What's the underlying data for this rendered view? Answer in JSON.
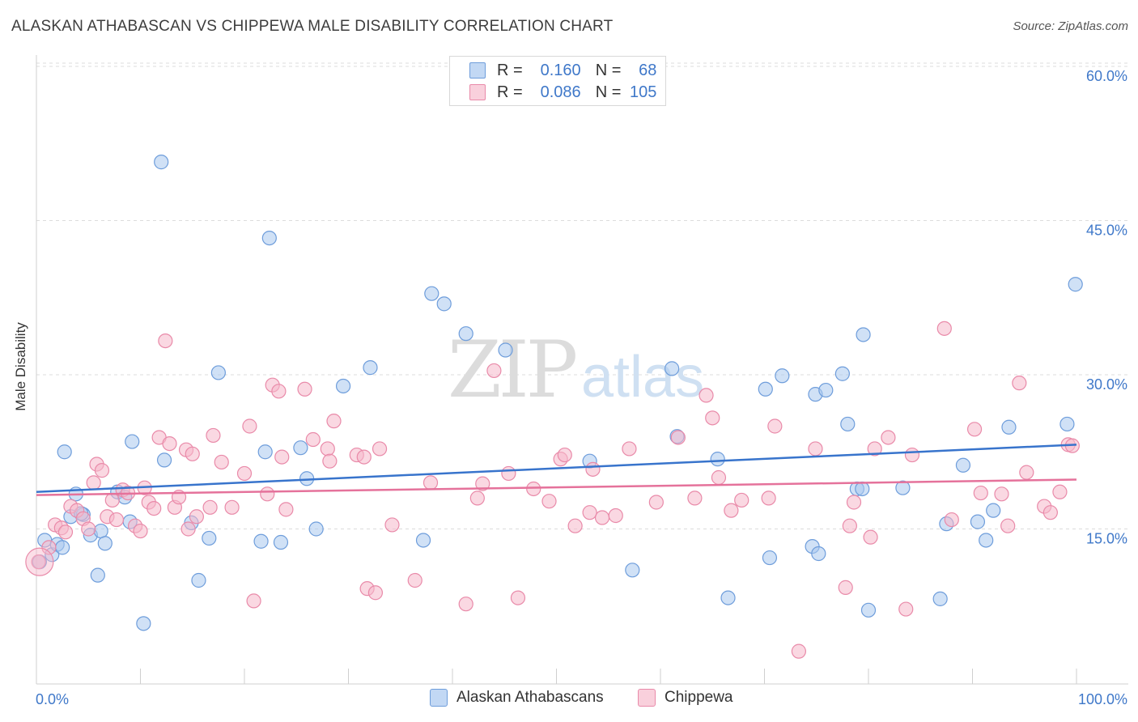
{
  "title": "ALASKAN ATHABASCAN VS CHIPPEWA MALE DISABILITY CORRELATION CHART",
  "source": "Source: ZipAtlas.com",
  "watermark": {
    "zip": "ZIP",
    "atlas": "atlas"
  },
  "legend_top": {
    "rows": [
      {
        "r_label": "R =",
        "r_value": "0.160",
        "n_label": "N =",
        "n_value": "68"
      },
      {
        "r_label": "R =",
        "r_value": "0.086",
        "n_label": "N =",
        "n_value": "105"
      }
    ]
  },
  "colors": {
    "blue_fill": "#aac8ee",
    "blue_stroke": "#6e9ddb",
    "blue_line": "#3874cc",
    "pink_fill": "#f6b8cb",
    "pink_stroke": "#e98aa9",
    "pink_line": "#e5729b",
    "tick_label": "#3f78c9",
    "grid": "#dcdcdc"
  },
  "chart_data": {
    "type": "scatter",
    "title": "ALASKAN ATHABASCAN VS CHIPPEWA MALE DISABILITY CORRELATION CHART",
    "xlabel": "",
    "ylabel": "Male Disability",
    "xlim": [
      0,
      100
    ],
    "ylim": [
      0,
      60
    ],
    "x_tick_labels": [
      "0.0%",
      "100.0%"
    ],
    "y_ticks": [
      15,
      30,
      45,
      60
    ],
    "y_tick_labels": [
      "15.0%",
      "30.0%",
      "45.0%",
      "60.0%"
    ],
    "grid": true,
    "legend_position": "bottom-center",
    "series": [
      {
        "name": "Alaskan Athabascans",
        "color": "#aac8ee",
        "trend": {
          "x": [
            0,
            100
          ],
          "y": [
            18.6,
            23.2
          ]
        },
        "points": [
          [
            0.3,
            11.8
          ],
          [
            0.8,
            13.9
          ],
          [
            1.5,
            12.5
          ],
          [
            2,
            13.5
          ],
          [
            2.7,
            22.5
          ],
          [
            3.3,
            16.2
          ],
          [
            3.8,
            18.4
          ],
          [
            4.5,
            16.4
          ],
          [
            5.2,
            14.4
          ],
          [
            5.9,
            10.5
          ],
          [
            6.2,
            14.8
          ],
          [
            6.6,
            13.6
          ],
          [
            7.8,
            18.6
          ],
          [
            8.5,
            18.1
          ],
          [
            9,
            15.7
          ],
          [
            9.2,
            23.5
          ],
          [
            10.3,
            5.8
          ],
          [
            12,
            50.7
          ],
          [
            12.3,
            21.7
          ],
          [
            14.9,
            15.6
          ],
          [
            15.6,
            10
          ],
          [
            16.6,
            14.1
          ],
          [
            17.5,
            30.2
          ],
          [
            21.6,
            13.8
          ],
          [
            22,
            22.5
          ],
          [
            22.4,
            43.3
          ],
          [
            23.5,
            13.7
          ],
          [
            25.4,
            22.9
          ],
          [
            26,
            19.9
          ],
          [
            26.9,
            15
          ],
          [
            29.5,
            28.9
          ],
          [
            32.1,
            30.7
          ],
          [
            37.2,
            13.9
          ],
          [
            38,
            37.9
          ],
          [
            39.2,
            36.9
          ],
          [
            41.3,
            34
          ],
          [
            45.1,
            32.4
          ],
          [
            53.2,
            21.6
          ],
          [
            57.3,
            11
          ],
          [
            61.1,
            30.6
          ],
          [
            61.6,
            24
          ],
          [
            65.5,
            21.8
          ],
          [
            66.5,
            8.3
          ],
          [
            70.1,
            28.6
          ],
          [
            70.5,
            12.2
          ],
          [
            71.7,
            29.9
          ],
          [
            74.6,
            13.3
          ],
          [
            74.9,
            28.1
          ],
          [
            75.2,
            12.6
          ],
          [
            75.9,
            28.5
          ],
          [
            77.5,
            30.1
          ],
          [
            78,
            25.2
          ],
          [
            78.9,
            18.9
          ],
          [
            79.4,
            18.9
          ],
          [
            79.5,
            33.9
          ],
          [
            80,
            7.1
          ],
          [
            83.3,
            19
          ],
          [
            86.9,
            8.2
          ],
          [
            87.5,
            15.5
          ],
          [
            89.1,
            21.2
          ],
          [
            90.5,
            15.7
          ],
          [
            91.3,
            13.9
          ],
          [
            92,
            16.8
          ],
          [
            93.5,
            24.9
          ],
          [
            99.1,
            25.2
          ],
          [
            99.9,
            38.8
          ],
          [
            2.5,
            13.2
          ],
          [
            4.3,
            16.5
          ]
        ]
      },
      {
        "name": "Chippewa",
        "color": "#f6b8cb",
        "trend": {
          "x": [
            0,
            100
          ],
          "y": [
            18.3,
            19.8
          ]
        },
        "points": [
          [
            0.2,
            11.8
          ],
          [
            1.2,
            13.2
          ],
          [
            1.8,
            15.4
          ],
          [
            2.4,
            15.1
          ],
          [
            2.8,
            14.7
          ],
          [
            3.3,
            17.2
          ],
          [
            3.9,
            16.8
          ],
          [
            4.5,
            16
          ],
          [
            5,
            15
          ],
          [
            5.5,
            19.5
          ],
          [
            5.8,
            21.3
          ],
          [
            6.3,
            20.7
          ],
          [
            6.8,
            16.2
          ],
          [
            7.3,
            17.8
          ],
          [
            7.7,
            15.9
          ],
          [
            8.3,
            18.8
          ],
          [
            8.8,
            18.5
          ],
          [
            9.5,
            15.3
          ],
          [
            10,
            14.8
          ],
          [
            10.4,
            19
          ],
          [
            10.8,
            17.6
          ],
          [
            11.3,
            17
          ],
          [
            11.8,
            23.9
          ],
          [
            12.4,
            33.3
          ],
          [
            12.8,
            23.3
          ],
          [
            13.3,
            17.1
          ],
          [
            13.7,
            18.1
          ],
          [
            14.4,
            22.7
          ],
          [
            14.6,
            15
          ],
          [
            15,
            22.3
          ],
          [
            15.4,
            16.2
          ],
          [
            16.7,
            17.1
          ],
          [
            17,
            24.1
          ],
          [
            17.8,
            21.5
          ],
          [
            18.8,
            17.1
          ],
          [
            20,
            20.4
          ],
          [
            20.5,
            25
          ],
          [
            20.9,
            8
          ],
          [
            22.2,
            18.4
          ],
          [
            22.7,
            29
          ],
          [
            23.3,
            28.4
          ],
          [
            23.6,
            22
          ],
          [
            24,
            16.9
          ],
          [
            25.8,
            28.6
          ],
          [
            26.6,
            23.7
          ],
          [
            28,
            22.8
          ],
          [
            28.2,
            21.6
          ],
          [
            28.6,
            25.5
          ],
          [
            30.8,
            22.2
          ],
          [
            31.5,
            22
          ],
          [
            31.8,
            9.2
          ],
          [
            32.6,
            8.8
          ],
          [
            33,
            22.8
          ],
          [
            34.2,
            15.4
          ],
          [
            36.4,
            10
          ],
          [
            37.9,
            19.5
          ],
          [
            41.3,
            7.7
          ],
          [
            42.4,
            18
          ],
          [
            42.9,
            19.4
          ],
          [
            44,
            30.4
          ],
          [
            45.4,
            20.4
          ],
          [
            46.3,
            8.3
          ],
          [
            47.8,
            18.9
          ],
          [
            49.3,
            17.7
          ],
          [
            50.4,
            21.8
          ],
          [
            50.8,
            22.2
          ],
          [
            51.8,
            15.3
          ],
          [
            53.2,
            16.6
          ],
          [
            53.5,
            20.8
          ],
          [
            54.4,
            16.1
          ],
          [
            55.7,
            16.3
          ],
          [
            57,
            22.8
          ],
          [
            59.6,
            17.6
          ],
          [
            61.7,
            23.9
          ],
          [
            63.3,
            18
          ],
          [
            64.4,
            28
          ],
          [
            65,
            25.8
          ],
          [
            65.6,
            20
          ],
          [
            66.8,
            16.8
          ],
          [
            67.8,
            17.8
          ],
          [
            70.4,
            18
          ],
          [
            71,
            25
          ],
          [
            73.3,
            3.1
          ],
          [
            74.9,
            22.8
          ],
          [
            77.8,
            9.3
          ],
          [
            78.2,
            15.3
          ],
          [
            78.6,
            17.6
          ],
          [
            80.2,
            14.2
          ],
          [
            80.6,
            22.8
          ],
          [
            81.9,
            23.9
          ],
          [
            83.6,
            7.2
          ],
          [
            84.2,
            22.2
          ],
          [
            87.3,
            34.5
          ],
          [
            88,
            15.9
          ],
          [
            90.2,
            24.7
          ],
          [
            90.8,
            18.5
          ],
          [
            92.8,
            18.4
          ],
          [
            93.4,
            15.3
          ],
          [
            94.5,
            29.2
          ],
          [
            95.2,
            20.5
          ],
          [
            96.9,
            17.2
          ],
          [
            97.5,
            16.6
          ],
          [
            98.4,
            18.6
          ],
          [
            99.2,
            23.2
          ],
          [
            99.6,
            23.1
          ]
        ]
      }
    ]
  },
  "bottom_legend": {
    "items": [
      "Alaskan Athabascans",
      "Chippewa"
    ]
  }
}
